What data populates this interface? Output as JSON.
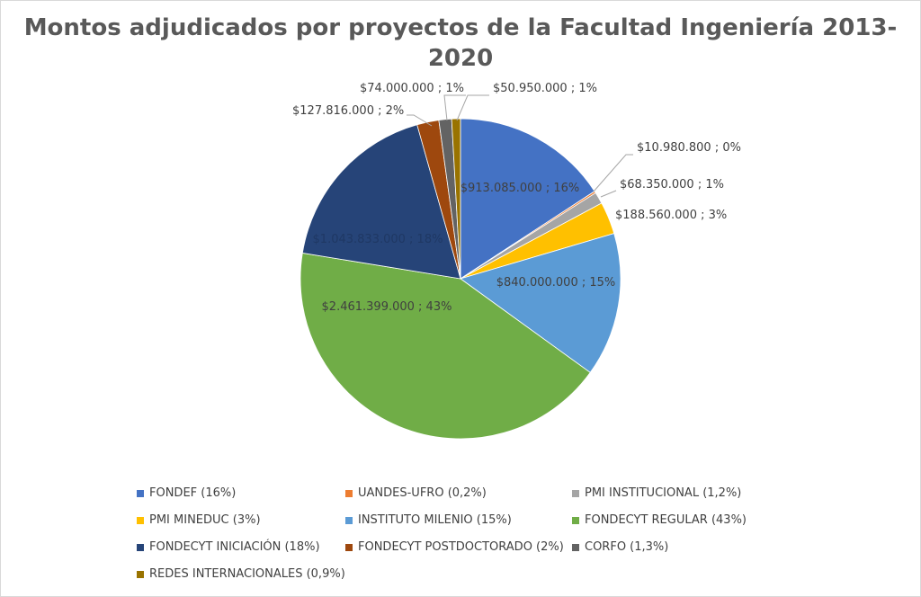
{
  "chart_data": {
    "type": "pie",
    "title": "Montos adjudicados por proyectos de la Facultad Ingeniería 2013-2020",
    "title_lines": [
      "Montos adjudicados por proyectos de la Facultad Ingeniería 2013-",
      "2020"
    ],
    "slices": [
      {
        "legend": "FONDEF (16%)",
        "value": 913085000,
        "label": "$913.085.000 ; 16%",
        "color": "#4472c4"
      },
      {
        "legend": "UANDES-UFRO (0,2%)",
        "value": 10980800,
        "label": "$10.980.800 ; 0%",
        "color": "#ed7d31"
      },
      {
        "legend": "PMI INSTITUCIONAL (1,2%)",
        "value": 68350000,
        "label": "$68.350.000 ; 1%",
        "color": "#a5a5a5"
      },
      {
        "legend": "PMI MINEDUC (3%)",
        "value": 188560000,
        "label": "$188.560.000 ; 3%",
        "color": "#ffc000"
      },
      {
        "legend": "INSTITUTO MILENIO (15%)",
        "value": 840000000,
        "label": "$840.000.000 ; 15%",
        "color": "#5b9bd5"
      },
      {
        "legend": "FONDECYT REGULAR (43%)",
        "value": 2461399000,
        "label": "$2.461.399.000 ; 43%",
        "color": "#70ad47"
      },
      {
        "legend": "FONDECYT INICIACIÓN (18%)",
        "value": 1043833000,
        "label": "$1.043.833.000 ; 18%",
        "color": "#264478"
      },
      {
        "legend": "FONDECYT POSTDOCTORADO (2%)",
        "value": 127816000,
        "label": "$127.816.000 ; 2%",
        "color": "#9e480e"
      },
      {
        "legend": "CORFO (1,3%)",
        "value": 74000000,
        "label": "$74.000.000 ; 1%",
        "color": "#636363"
      },
      {
        "legend": "REDES INTERNACIONALES (0,9%)",
        "value": 50950000,
        "label": "$50.950.000 ; 1%",
        "color": "#997300"
      }
    ],
    "legend_position": "bottom"
  }
}
